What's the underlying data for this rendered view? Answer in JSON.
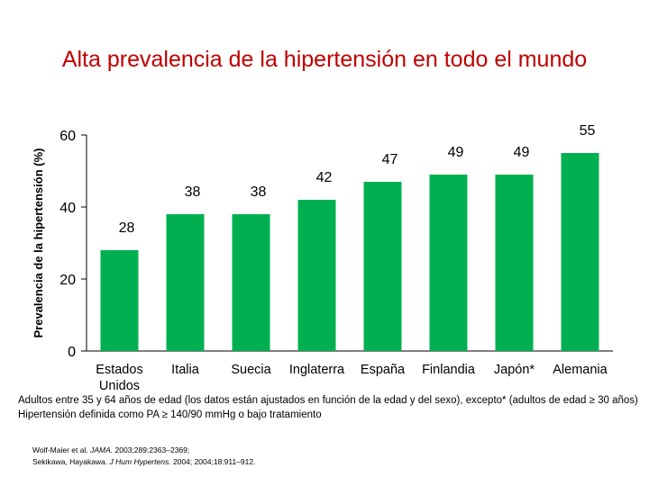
{
  "chart_data": {
    "type": "bar",
    "title": "Alta prevalencia de la hipertensión en todo el mundo",
    "ylabel": "Prevalencia de la hipertensión (%)",
    "xlabel": "",
    "ylim": [
      0,
      60
    ],
    "yticks": [
      0,
      20,
      40,
      60
    ],
    "categories": [
      "Estados Unidos",
      "Italia",
      "Suecia",
      "Inglaterra",
      "España",
      "Finlandia",
      "Japón*",
      "Alemania"
    ],
    "values": [
      28,
      38,
      38,
      42,
      47,
      49,
      49,
      55
    ],
    "bar_color": "#00b050",
    "grid": false
  },
  "notes": {
    "line1": "Adultos entre 35 y 64 años de edad (los datos están ajustados en función de la edad y del sexo), excepto* (adultos de edad ≥ 30 años)",
    "line2": "Hipertensión definida como PA ≥ 140/90 mmHg o bajo tratamiento"
  },
  "references": {
    "ref1_authors": "Wolf-Maier et al.",
    "ref1_journal": "JAMA.",
    "ref1_rest": "2003;289:2363–2369;",
    "ref2_authors": "Sekikawa, Hayakawa.",
    "ref2_journal": "J Hum Hypertens.",
    "ref2_rest": "2004; 2004;18:911–912."
  }
}
